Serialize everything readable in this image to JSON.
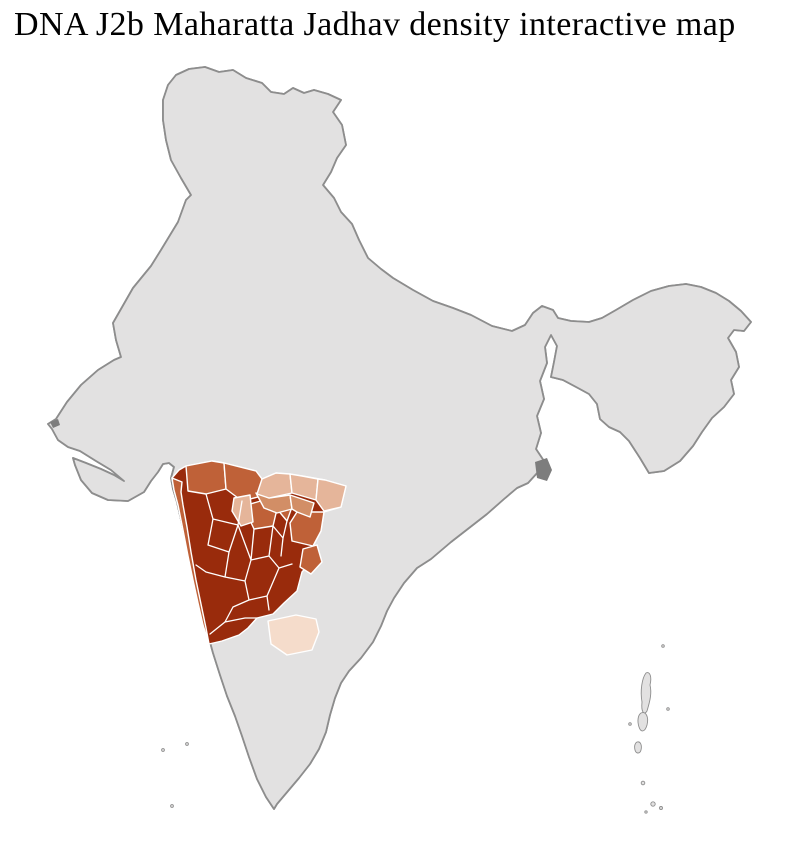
{
  "page": {
    "title": "DNA J2b Maharatta Jadhav density interactive map",
    "background_color": "#ffffff"
  },
  "map": {
    "kind": "district-level choropleth of India",
    "sea_color": "#ffffff",
    "land_fill": "#e2e1e1",
    "district_line_color": "#ffffff",
    "state_line_color": "#8d8d8d",
    "outline_color": "#8d8d8d",
    "delta_color": "#7d7d7d",
    "density_scale": [
      {
        "rank": 1,
        "label": "highest",
        "color": "#992b0c",
        "approx_districts": 17
      },
      {
        "rank": 2,
        "label": "high",
        "color": "#bf6138",
        "approx_districts": 10
      },
      {
        "rank": 3,
        "label": "medium",
        "color": "#d28e66",
        "approx_districts": 4
      },
      {
        "rank": 4,
        "label": "low",
        "color": "#e5b59a",
        "approx_districts": 4
      },
      {
        "rank": 5,
        "label": "lowest",
        "color": "#f5dccb",
        "approx_districts": 1
      }
    ]
  }
}
